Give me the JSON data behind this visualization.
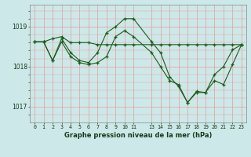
{
  "title": "Graphe pression niveau de la mer (hPa)",
  "bg_color": "#cce8e8",
  "grid_color_major": "#ee9999",
  "grid_color_minor": "#f5cccc",
  "line_color": "#1a5c1a",
  "xlim": [
    -0.5,
    23.5
  ],
  "ylim": [
    1016.6,
    1019.55
  ],
  "yticks": [
    1017,
    1018,
    1019
  ],
  "xticks": [
    0,
    1,
    2,
    3,
    4,
    5,
    6,
    7,
    8,
    9,
    10,
    11,
    13,
    14,
    15,
    16,
    17,
    18,
    19,
    20,
    21,
    22,
    23
  ],
  "series": [
    {
      "x": [
        0,
        1,
        2,
        3,
        4,
        5,
        6,
        7,
        8,
        9,
        10,
        11,
        13,
        14,
        15,
        16,
        17,
        18,
        19,
        20,
        21,
        22,
        23
      ],
      "y": [
        1018.62,
        1018.62,
        1018.7,
        1018.75,
        1018.6,
        1018.6,
        1018.6,
        1018.55,
        1018.55,
        1018.55,
        1018.55,
        1018.55,
        1018.55,
        1018.55,
        1018.55,
        1018.55,
        1018.55,
        1018.55,
        1018.55,
        1018.55,
        1018.55,
        1018.55,
        1018.55
      ]
    },
    {
      "x": [
        0,
        1,
        2,
        3,
        4,
        5,
        6,
        7,
        8,
        9,
        10,
        11,
        13,
        14,
        15,
        16,
        17,
        18,
        19,
        20,
        21,
        22,
        23
      ],
      "y": [
        1018.62,
        1018.62,
        1018.15,
        1018.7,
        1018.35,
        1018.15,
        1018.1,
        1018.35,
        1018.85,
        1019.0,
        1019.2,
        1019.2,
        1018.62,
        1018.35,
        1017.75,
        1017.5,
        1017.1,
        1017.38,
        1017.35,
        1017.8,
        1018.0,
        1018.42,
        1018.55
      ]
    },
    {
      "x": [
        0,
        1,
        2,
        3,
        4,
        5,
        6,
        7,
        8,
        9,
        10,
        11,
        13,
        14,
        15,
        16,
        17,
        18,
        19,
        20,
        21,
        22,
        23
      ],
      "y": [
        1018.62,
        1018.62,
        1018.15,
        1018.62,
        1018.25,
        1018.1,
        1018.05,
        1018.1,
        1018.25,
        1018.75,
        1018.9,
        1018.75,
        1018.35,
        1018.0,
        1017.65,
        1017.55,
        1017.1,
        1017.35,
        1017.35,
        1017.65,
        1017.55,
        1018.05,
        1018.55
      ]
    }
  ]
}
